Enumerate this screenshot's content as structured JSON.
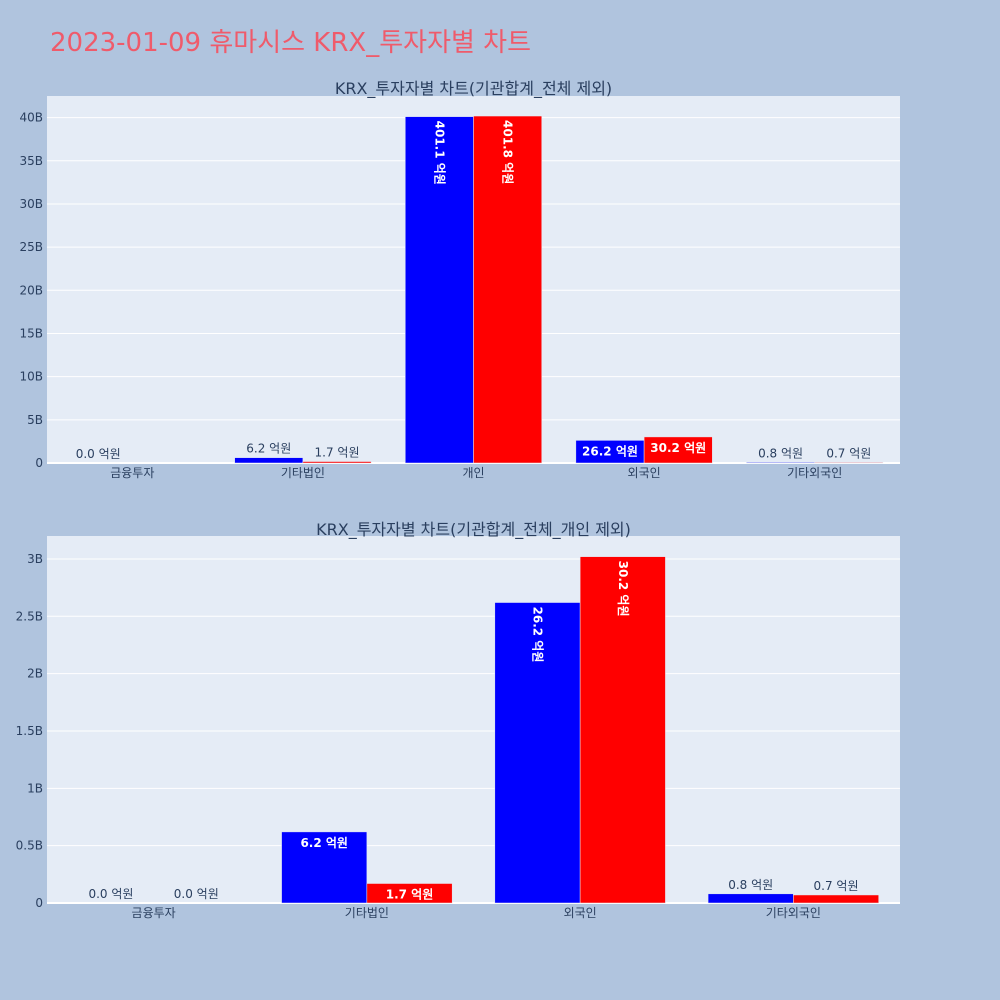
{
  "page": {
    "title": "2023-01-09 휴마시스 KRX_투자자별 차트"
  },
  "chart_data": [
    {
      "type": "bar",
      "title": "KRX_투자자별 차트(기관합계_전체 제외)",
      "categories": [
        "금융투자",
        "기타법인",
        "개인",
        "외국인",
        "기타외국인"
      ],
      "series": [
        {
          "color": "#0000ff",
          "values": [
            0,
            620000000,
            40110000000,
            2620000000,
            80000000
          ],
          "labels": [
            "0.0 억원",
            "6.2 억원",
            "401.1 억원",
            "26.2 억원",
            "0.8 억원"
          ]
        },
        {
          "color": "#ff0000",
          "values": [
            0,
            170000000,
            40180000000,
            3020000000,
            70000000
          ],
          "labels": [
            "",
            "1.7 억원",
            "401.8 억원",
            "30.2 억원",
            "0.7 억원"
          ]
        }
      ],
      "ylim": [
        0,
        42500000000
      ],
      "yticks": [
        0,
        5000000000,
        10000000000,
        15000000000,
        20000000000,
        25000000000,
        30000000000,
        35000000000,
        40000000000
      ],
      "ytick_labels": [
        "0",
        "5B",
        "10B",
        "15B",
        "20B",
        "25B",
        "30B",
        "35B",
        "40B"
      ],
      "grid": true
    },
    {
      "type": "bar",
      "title": "KRX_투자자별 차트(기관합계_전체_개인 제외)",
      "categories": [
        "금융투자",
        "기타법인",
        "외국인",
        "기타외국인"
      ],
      "series": [
        {
          "color": "#0000ff",
          "values": [
            0,
            620000000,
            2620000000,
            80000000
          ],
          "labels": [
            "0.0 억원",
            "6.2 억원",
            "26.2 억원",
            "0.8 억원"
          ]
        },
        {
          "color": "#ff0000",
          "values": [
            0,
            170000000,
            3020000000,
            70000000
          ],
          "labels": [
            "0.0 억원",
            "1.7 억원",
            "30.2 억원",
            "0.7 억원"
          ]
        }
      ],
      "ylim": [
        0,
        3200000000
      ],
      "yticks": [
        0,
        500000000,
        1000000000,
        1500000000,
        2000000000,
        2500000000,
        3000000000
      ],
      "ytick_labels": [
        "0",
        "0.5B",
        "1B",
        "1.5B",
        "2B",
        "2.5B",
        "3B"
      ],
      "grid": true
    }
  ]
}
